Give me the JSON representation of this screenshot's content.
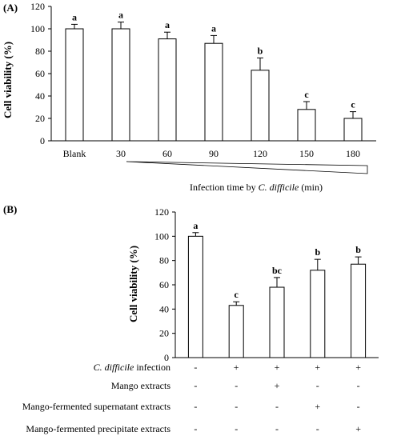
{
  "chart_data": [
    {
      "panel_label": "(A)",
      "type": "bar",
      "categories": [
        "Blank",
        "30",
        "60",
        "90",
        "120",
        "150",
        "180"
      ],
      "values": [
        100,
        100,
        91,
        87,
        63,
        28,
        20
      ],
      "errors": [
        4,
        6,
        6,
        7,
        11,
        7,
        6
      ],
      "letters": [
        "a",
        "a",
        "a",
        "a",
        "b",
        "c",
        "c"
      ],
      "ylabel": "Cell viability (%)",
      "xlabel_parts": [
        "Infection time by ",
        "C. difficile",
        " (min)"
      ],
      "ylim": [
        0,
        120
      ],
      "yticks": [
        0,
        20,
        40,
        60,
        80,
        100,
        120
      ],
      "grid": false,
      "bar_fill": "#ffffff",
      "bar_stroke": "#000000"
    },
    {
      "panel_label": "(B)",
      "type": "bar",
      "categories": [
        "1",
        "2",
        "3",
        "4",
        "5"
      ],
      "values": [
        100,
        43,
        58,
        72,
        77
      ],
      "errors": [
        3,
        3,
        8,
        9,
        6
      ],
      "letters": [
        "a",
        "c",
        "bc",
        "b",
        "b"
      ],
      "ylabel": "Cell viability (%)",
      "ylim": [
        0,
        120
      ],
      "yticks": [
        0,
        20,
        40,
        60,
        80,
        100,
        120
      ],
      "grid": false,
      "bar_fill": "#ffffff",
      "bar_stroke": "#000000",
      "treatment_rows": [
        {
          "label_parts": [
            "C. difficile",
            " infection"
          ],
          "signs": [
            "-",
            "+",
            "+",
            "+",
            "+"
          ]
        },
        {
          "label_parts": [
            "Mango extracts"
          ],
          "signs": [
            "-",
            "-",
            "+",
            "-",
            "-"
          ]
        },
        {
          "label_parts": [
            "Mango-fermented supernatant extracts"
          ],
          "signs": [
            "-",
            "-",
            "-",
            "+",
            "-"
          ]
        },
        {
          "label_parts": [
            "Mango-fermented precipitate extracts"
          ],
          "signs": [
            "-",
            "-",
            "-",
            "-",
            "+"
          ]
        }
      ]
    }
  ]
}
